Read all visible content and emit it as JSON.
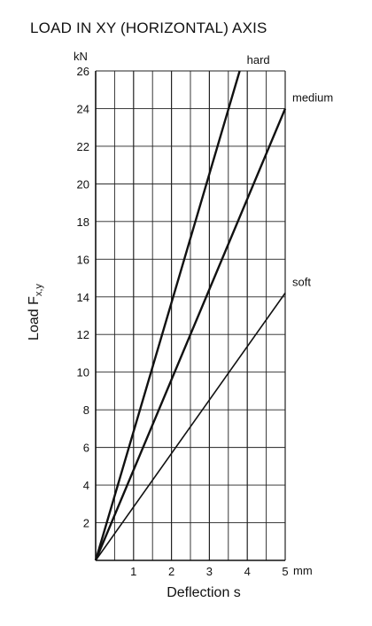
{
  "chart_data": {
    "type": "line",
    "title": "LOAD IN XY (HORIZONTAL) AXIS",
    "xlabel": "Deflection s",
    "x_unit": "mm",
    "ylabel_main": "Load F",
    "ylabel_sub": "x,y",
    "y_unit": "kN",
    "xlim": [
      0,
      5
    ],
    "ylim": [
      0,
      26
    ],
    "x_ticks": [
      1,
      2,
      3,
      4,
      5
    ],
    "y_ticks": [
      2,
      4,
      6,
      8,
      10,
      12,
      14,
      16,
      18,
      20,
      22,
      24,
      26
    ],
    "x_minor_step": 0.5,
    "y_minor_step": 2,
    "grid": true,
    "series": [
      {
        "name": "hard",
        "points": [
          [
            0,
            0
          ],
          [
            3.8,
            26
          ]
        ]
      },
      {
        "name": "medium",
        "points": [
          [
            0,
            0
          ],
          [
            5,
            24
          ]
        ]
      },
      {
        "name": "soft",
        "points": [
          [
            0,
            0
          ],
          [
            5,
            14.2
          ]
        ]
      }
    ]
  }
}
